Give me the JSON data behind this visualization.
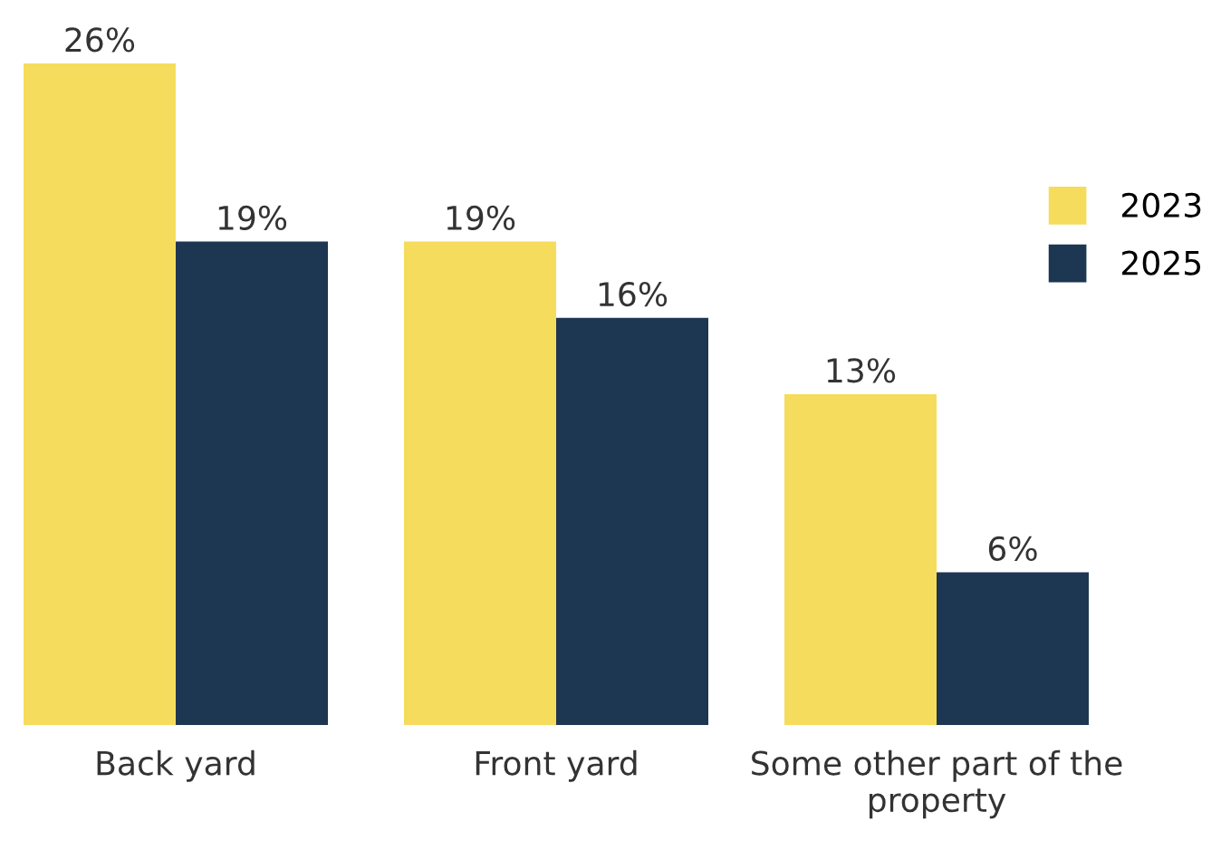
{
  "chart_data": {
    "type": "bar",
    "categories": [
      "Back yard",
      "Front yard",
      "Some other part of the property"
    ],
    "series": [
      {
        "name": "2023",
        "color": "#f6dc5c",
        "values": [
          26,
          19,
          13
        ],
        "value_labels": [
          "26%",
          "19%",
          "13%"
        ]
      },
      {
        "name": "2025",
        "color": "#1d3652",
        "values": [
          19,
          16,
          6
        ],
        "value_labels": [
          "19%",
          "16%",
          "6%"
        ]
      }
    ],
    "legend": "top right",
    "grid": false
  }
}
